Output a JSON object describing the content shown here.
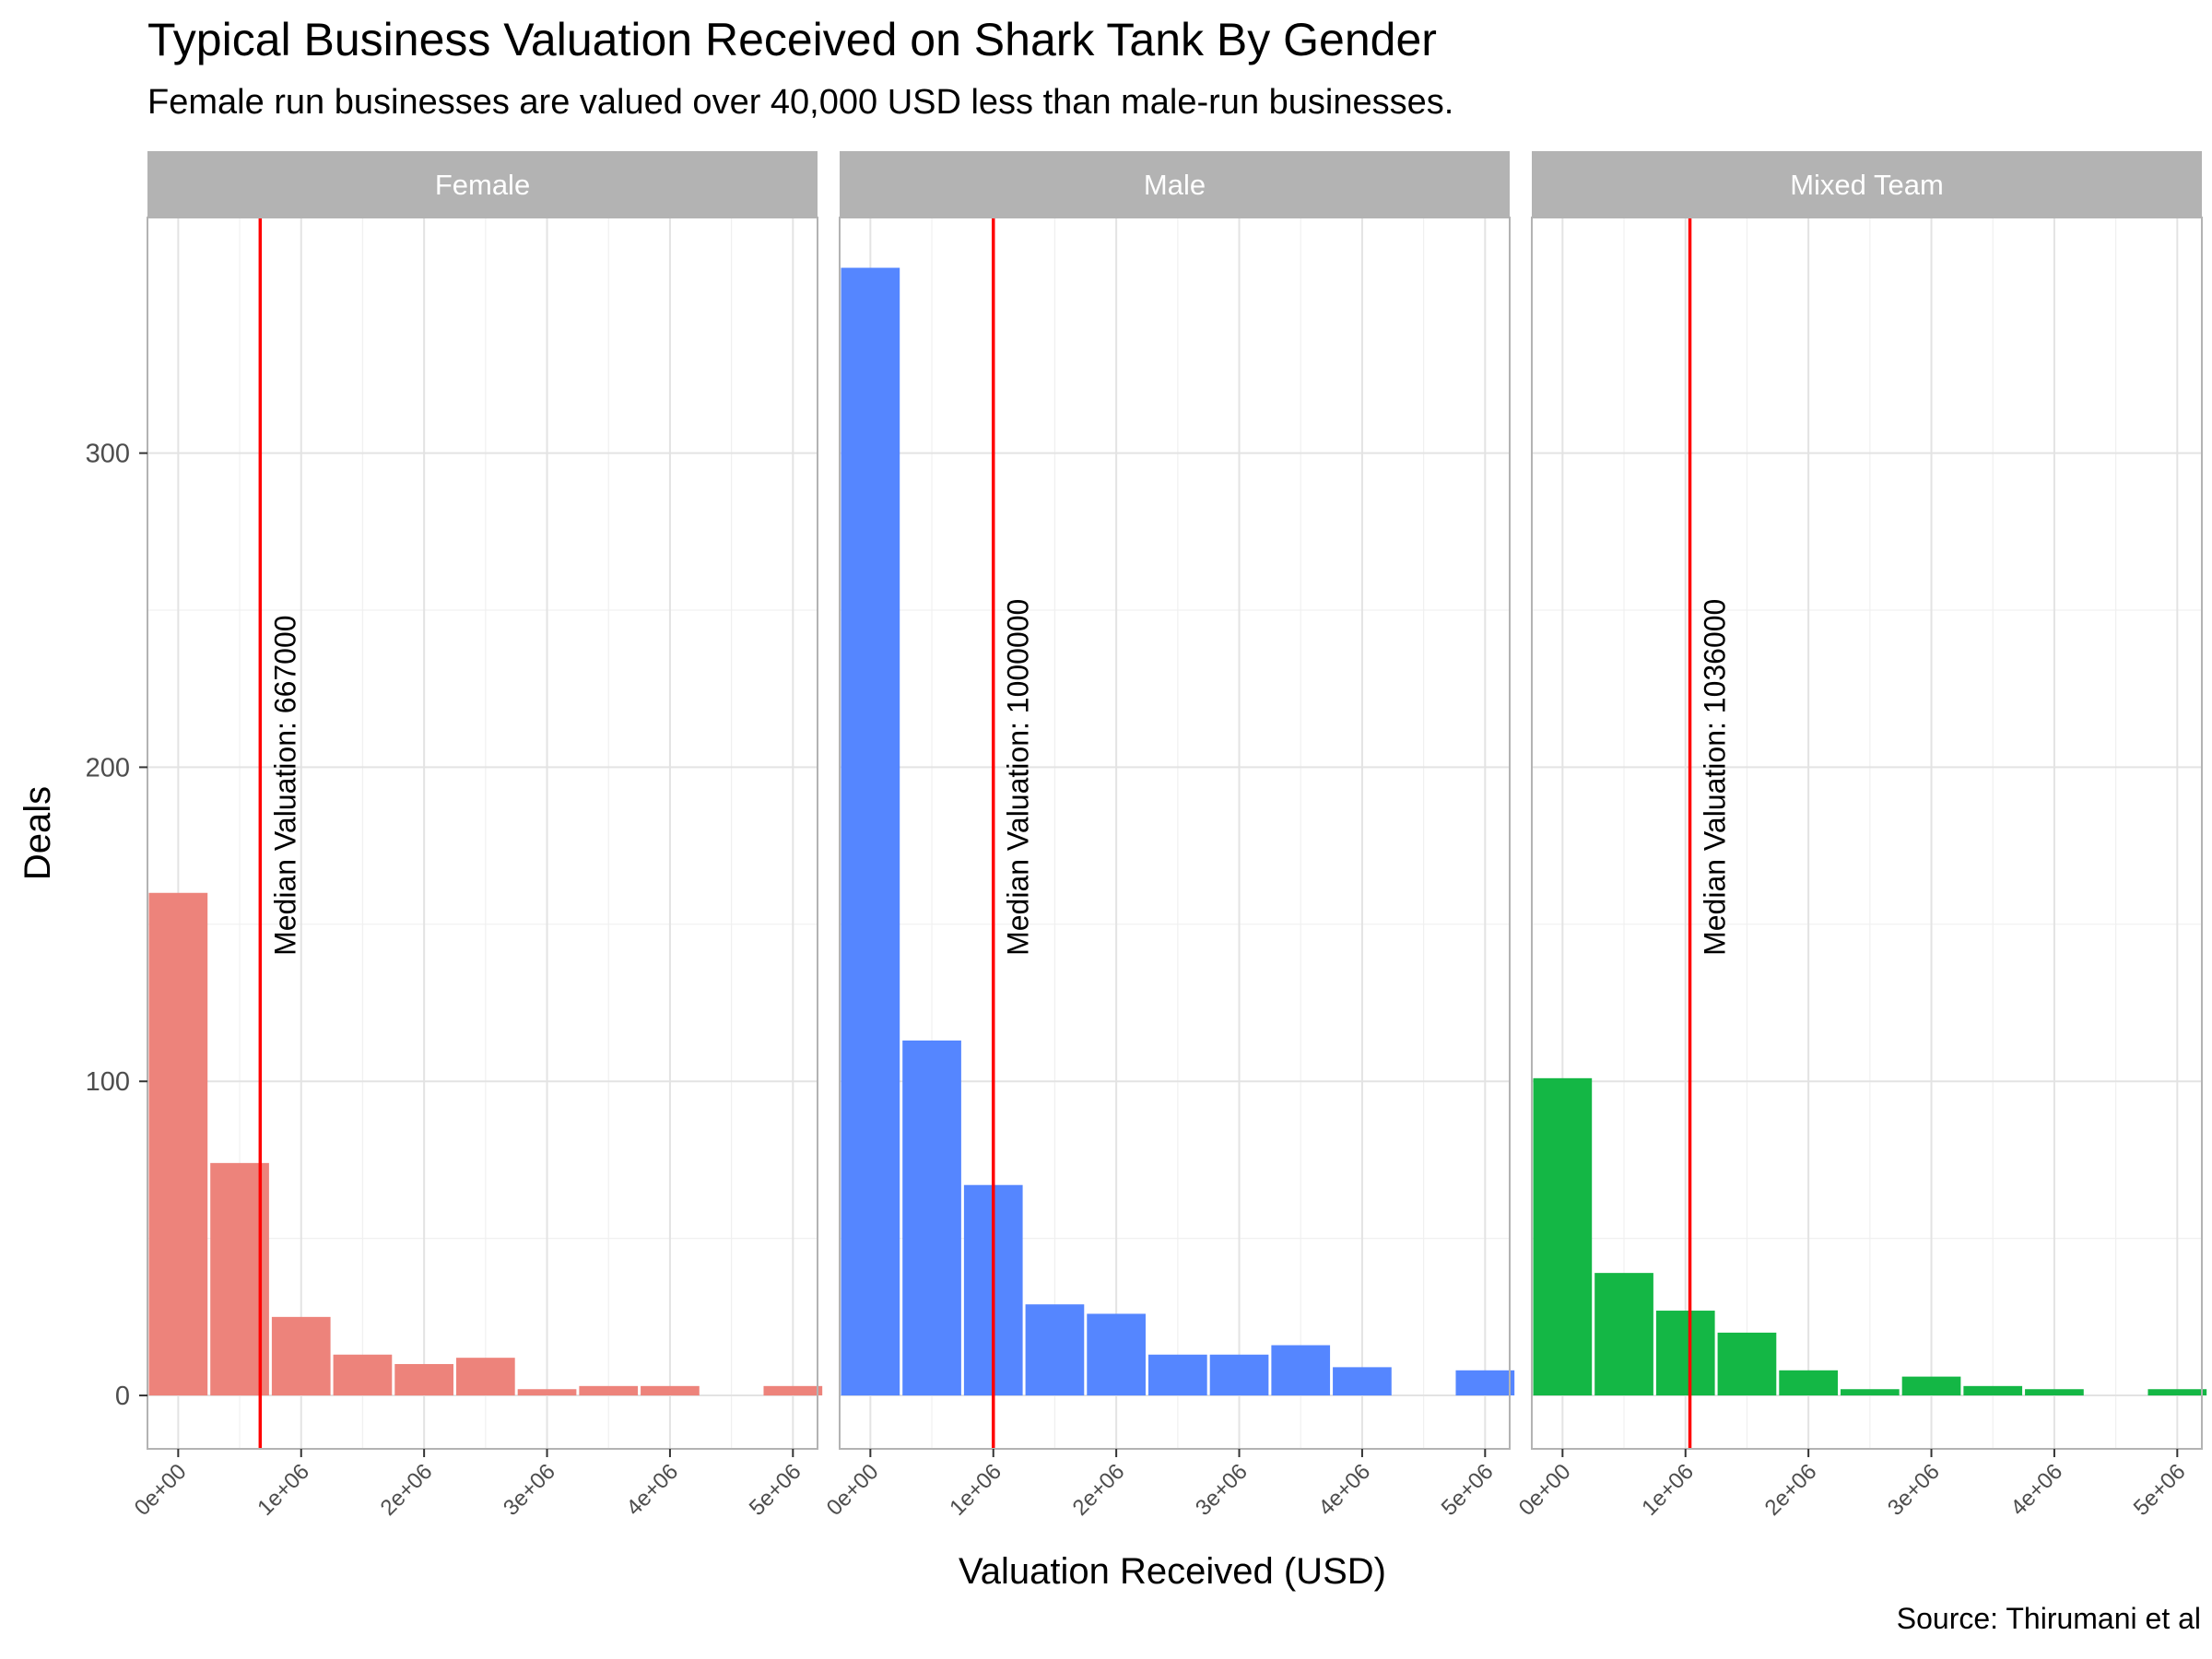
{
  "chart_data": {
    "type": "bar",
    "title": "Typical Business Valuation Received on Shark Tank By Gender",
    "subtitle": "Female run businesses are valued over 40,000 USD less than male-run businesses.",
    "caption": "Source: Thirumani et al",
    "xlabel": "Valuation Received (USD)",
    "ylabel": "Deals",
    "xlim": [
      -250000,
      5200000
    ],
    "ylim": [
      -17,
      375
    ],
    "x_ticks": [
      0,
      1000000,
      2000000,
      3000000,
      4000000,
      5000000
    ],
    "x_tick_labels": [
      "0e+00",
      "1e+06",
      "2e+06",
      "3e+06",
      "4e+06",
      "5e+06"
    ],
    "y_ticks": [
      0,
      100,
      200,
      300
    ],
    "y_tick_labels": [
      "0",
      "100",
      "200",
      "300"
    ],
    "grid": true,
    "bin_centers": [
      0,
      500000,
      1000000,
      1500000,
      2000000,
      2500000,
      3000000,
      3500000,
      4000000,
      4500000,
      5000000
    ],
    "bin_width": 500000,
    "panels": [
      {
        "name": "Female",
        "color": "#ED837B",
        "values": [
          160,
          74,
          25,
          13,
          10,
          12,
          2,
          3,
          3,
          0,
          3
        ],
        "median": 667000,
        "median_label": "Median Valuation: 667000"
      },
      {
        "name": "Male",
        "color": "#5586FF",
        "values": [
          359,
          113,
          67,
          29,
          26,
          13,
          13,
          16,
          9,
          0,
          8
        ],
        "median": 1000000,
        "median_label": "Median Valuation: 1000000"
      },
      {
        "name": "Mixed Team",
        "color": "#14B745",
        "values": [
          101,
          39,
          27,
          20,
          8,
          2,
          6,
          3,
          2,
          0,
          2
        ],
        "median": 1036000,
        "median_label": "Median Valuation: 1036000"
      }
    ],
    "median_line_color": "#FF0000"
  }
}
